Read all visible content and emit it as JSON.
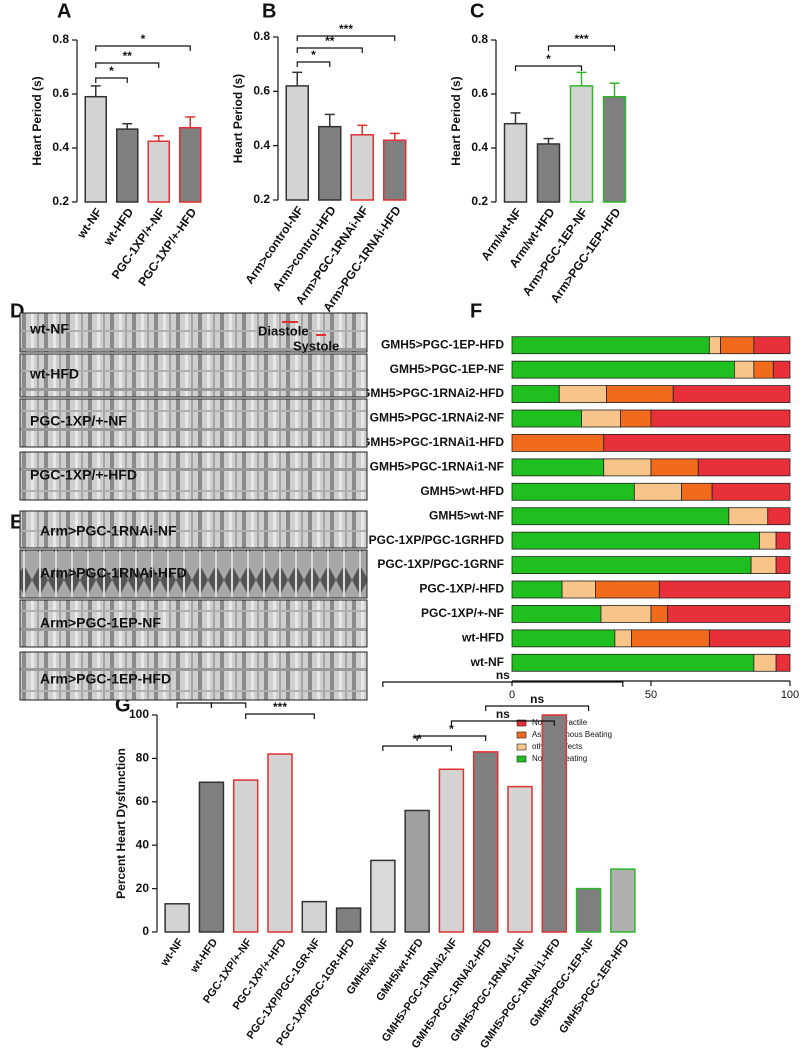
{
  "chart_data": [
    {
      "type": "bar",
      "panel": "A",
      "ylabel": "Heart Period (s)",
      "categories": [
        "wt-NF",
        "wt-HFD",
        "PGC-1XP/+-NF",
        "PGC-1XP/+-HFD"
      ],
      "values": [
        0.59,
        0.47,
        0.425,
        0.475
      ],
      "errors": [
        0.04,
        0.02,
        0.02,
        0.04
      ],
      "colors": [
        "#d3d3d3",
        "#7f7f7f",
        "#d3d3d3",
        "#7f7f7f"
      ],
      "edge_colors": [
        "#333333",
        "#333333",
        "#e03030",
        "#e03030"
      ],
      "ylim": [
        0.2,
        0.8
      ],
      "yticks": [
        0.2,
        0.4,
        0.6,
        0.8
      ],
      "annotations": [
        "*",
        "**",
        "*"
      ]
    },
    {
      "type": "bar",
      "panel": "B",
      "ylabel": "Heart Period (s)",
      "categories": [
        "Arm>control-NF",
        "Arm>control-HFD",
        "Arm>PGC-1RNAi-NF",
        "Arm>PGC-1RNAi-HFD"
      ],
      "values": [
        0.62,
        0.47,
        0.44,
        0.42
      ],
      "errors": [
        0.05,
        0.045,
        0.035,
        0.025
      ],
      "colors": [
        "#d3d3d3",
        "#7f7f7f",
        "#d3d3d3",
        "#7f7f7f"
      ],
      "edge_colors": [
        "#333333",
        "#333333",
        "#e03030",
        "#e03030"
      ],
      "ylim": [
        0.2,
        0.8
      ],
      "yticks": [
        0.2,
        0.4,
        0.6,
        0.8
      ],
      "annotations": [
        "*",
        "**",
        "***"
      ]
    },
    {
      "type": "bar",
      "panel": "C",
      "ylabel": "Heart Period (s)",
      "categories": [
        "Arm/wt-NF",
        "Arm/wt-HFD",
        "Arm>PGC-1EP-NF",
        "Arm>PGC-1EP-HFD"
      ],
      "values": [
        0.49,
        0.415,
        0.63,
        0.59
      ],
      "errors": [
        0.04,
        0.02,
        0.05,
        0.05
      ],
      "colors": [
        "#d3d3d3",
        "#7f7f7f",
        "#d3d3d3",
        "#7f7f7f"
      ],
      "edge_colors": [
        "#333333",
        "#333333",
        "#2cb52c",
        "#2cb52c"
      ],
      "ylim": [
        0.2,
        0.8
      ],
      "yticks": [
        0.2,
        0.4,
        0.6,
        0.8
      ],
      "annotations": [
        "*",
        "***"
      ]
    },
    {
      "type": "stacked_barh",
      "panel": "F",
      "categories": [
        "GMH5>PGC-1EP-HFD",
        "GMH5>PGC-1EP-NF",
        "GMH5>PGC-1RNAi2-HFD",
        "GMH5>PGC-1RNAi2-NF",
        "GMH5>PGC-1RNAi1-HFD",
        "GMH5>PGC-1RNAi1-NF",
        "GMH5>wt-HFD",
        "GMH5>wt-NF",
        "PGC-1XP/PGC-1GRHFD",
        "PGC-1XP/PGC-1GRNF",
        "PGC-1XP/-HFD",
        "PGC-1XP/+-NF",
        "wt-HFD",
        "wt-NF"
      ],
      "series": [
        {
          "name": "Normal Beating",
          "color": "#1fbf1f",
          "values": [
            71,
            80,
            17,
            25,
            0,
            33,
            44,
            78,
            89,
            86,
            18,
            32,
            37,
            87
          ]
        },
        {
          "name": "others defects",
          "color": "#f7c48a",
          "values": [
            4,
            7,
            17,
            14,
            0,
            17,
            17,
            14,
            6,
            9,
            12,
            18,
            6,
            8
          ]
        },
        {
          "name": "Asynchronous Beating",
          "color": "#f26a1b",
          "values": [
            12,
            7,
            24,
            11,
            33,
            17,
            11,
            0,
            0,
            0,
            23,
            6,
            28,
            0
          ]
        },
        {
          "name": "Non Contractile",
          "color": "#e8303a",
          "values": [
            13,
            6,
            42,
            50,
            67,
            33,
            28,
            8,
            5,
            5,
            47,
            44,
            29,
            5
          ]
        }
      ],
      "xlim": [
        0,
        100
      ],
      "xticks": [
        0,
        50,
        100
      ]
    },
    {
      "type": "bar",
      "panel": "G",
      "ylabel": "Percent Heart Dysfunction",
      "categories": [
        "wt-NF",
        "wt-HFD",
        "PGC-1XP/+-NF",
        "PGC-1XP/+-HFD",
        "PGC-1XP/PGC-1GR-NF",
        "PGC-1XP/PGC-1GR-HFD",
        "GMH5/wt-NF",
        "GMH5/wt-HFD",
        "GMH5>PGC-1RNAi2-NF",
        "GMH5>PGC-1RNAi2-HFD",
        "GMH5>PGC-1RNAi1-NF",
        "GMH5>PGC-1RNAi1-HFD",
        "GMH5>PGC-1EP-NF",
        "GMH5>PGC-1EP-HFD"
      ],
      "values": [
        13,
        69,
        70,
        82,
        14,
        11,
        33,
        56,
        75,
        83,
        67,
        100,
        20,
        29
      ],
      "colors": [
        "#d3d3d3",
        "#7f7f7f",
        "#d3d3d3",
        "#d3d3d3",
        "#d3d3d3",
        "#7f7f7f",
        "#d9d9d9",
        "#a0a0a0",
        "#d3d3d3",
        "#7f7f7f",
        "#d3d3d3",
        "#7f7f7f",
        "#7f7f7f",
        "#b0b0b0"
      ],
      "edge_colors": [
        "#333333",
        "#333333",
        "#e03030",
        "#e03030",
        "#333333",
        "#333333",
        "#333333",
        "#333333",
        "#e03030",
        "#e03030",
        "#e03030",
        "#e03030",
        "#2cb52c",
        "#2cb52c"
      ],
      "ylim": [
        0,
        100
      ],
      "yticks": [
        0,
        20,
        40,
        60,
        80,
        100
      ],
      "annotations": [
        "ns",
        "***",
        "ns",
        "***",
        "***",
        "ns",
        "ns",
        "ns",
        "*",
        "**"
      ]
    }
  ],
  "kymographs": [
    {
      "panel": "D",
      "labels": [
        "wt-NF",
        "wt-HFD",
        "PGC-1XP/+-NF",
        "PGC-1XP/+-HFD"
      ],
      "markers": [
        "Diastole",
        "Systole"
      ]
    },
    {
      "panel": "E",
      "labels": [
        "Arm>PGC-1RNAi-NF",
        "Arm>PGC-1RNAi-HFD",
        "Arm>PGC-1EP-NF",
        "Arm>PGC-1EP-HFD"
      ]
    }
  ]
}
